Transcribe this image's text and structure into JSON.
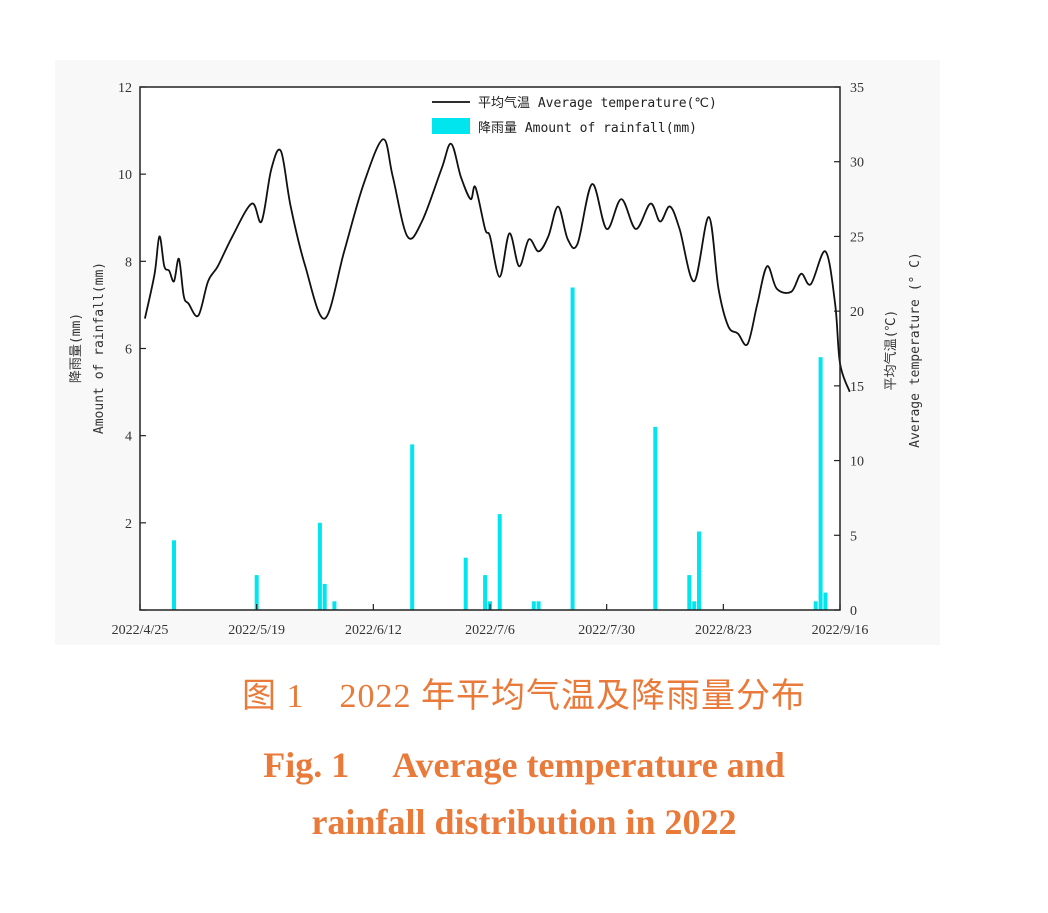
{
  "caption": {
    "zh": "图 1　2022 年平均气温及降雨量分布",
    "en_line1": "Fig. 1　 Average temperature and",
    "en_line2": "rainfall distribution in 2022"
  },
  "chart_data": {
    "type": "bar+line",
    "x_ticks": [
      "2022/4/25",
      "2022/5/19",
      "2022/6/12",
      "2022/7/6",
      "2022/7/30",
      "2022/8/23",
      "2022/9/16"
    ],
    "xlim": [
      "2022-04-25",
      "2022-09-16"
    ],
    "y_left": {
      "label_zh": "降雨量(mm)",
      "label_en": "Amount of rainfall(mm)",
      "ylim": [
        0,
        12
      ],
      "ticks": [
        "",
        "2",
        "4",
        "6",
        "8",
        "10",
        "12"
      ]
    },
    "y_right": {
      "label_zh": "平均气温(℃)",
      "label_en": "Average temperature (° C)",
      "ylim": [
        0,
        35
      ],
      "ticks": [
        "0",
        "5",
        "10",
        "15",
        "20",
        "25",
        "30",
        "35"
      ]
    },
    "legend": {
      "position": "top-right",
      "line_label": "平均气温 Average temperature(℃)",
      "bar_label": "降雨量 Amount of rainfall(mm)"
    },
    "colors": {
      "line": "#111111",
      "bar": "#00e5ee"
    },
    "rainfall_series": {
      "name": "降雨量 Amount of rainfall(mm)",
      "points": [
        {
          "date": "2022-05-02",
          "value": 1.6
        },
        {
          "date": "2022-05-19",
          "value": 0.8
        },
        {
          "date": "2022-06-01",
          "value": 2.0
        },
        {
          "date": "2022-06-02",
          "value": 0.6
        },
        {
          "date": "2022-06-04",
          "value": 0.2
        },
        {
          "date": "2022-06-20",
          "value": 3.8
        },
        {
          "date": "2022-07-01",
          "value": 1.2
        },
        {
          "date": "2022-07-05",
          "value": 0.8
        },
        {
          "date": "2022-07-06",
          "value": 0.2
        },
        {
          "date": "2022-07-08",
          "value": 2.2
        },
        {
          "date": "2022-07-15",
          "value": 0.2
        },
        {
          "date": "2022-07-16",
          "value": 0.2
        },
        {
          "date": "2022-07-23",
          "value": 7.4
        },
        {
          "date": "2022-08-09",
          "value": 4.2
        },
        {
          "date": "2022-08-16",
          "value": 0.8
        },
        {
          "date": "2022-08-17",
          "value": 0.2
        },
        {
          "date": "2022-08-18",
          "value": 1.8
        },
        {
          "date": "2022-09-11",
          "value": 0.2
        },
        {
          "date": "2022-09-12",
          "value": 5.8
        },
        {
          "date": "2022-09-13",
          "value": 0.4
        }
      ]
    },
    "temperature_series": {
      "name": "平均气温 Average temperature(℃)",
      "points": [
        {
          "date": "2022-04-26",
          "value": 19.5
        },
        {
          "date": "2022-04-28",
          "value": 22.5
        },
        {
          "date": "2022-04-29",
          "value": 25.0
        },
        {
          "date": "2022-04-30",
          "value": 23.0
        },
        {
          "date": "2022-05-01",
          "value": 22.7
        },
        {
          "date": "2022-05-02",
          "value": 22.0
        },
        {
          "date": "2022-05-03",
          "value": 23.5
        },
        {
          "date": "2022-05-04",
          "value": 21.0
        },
        {
          "date": "2022-05-05",
          "value": 20.5
        },
        {
          "date": "2022-05-07",
          "value": 19.7
        },
        {
          "date": "2022-05-09",
          "value": 22.0
        },
        {
          "date": "2022-05-11",
          "value": 23.0
        },
        {
          "date": "2022-05-14",
          "value": 25.0
        },
        {
          "date": "2022-05-18",
          "value": 27.2
        },
        {
          "date": "2022-05-20",
          "value": 26.0
        },
        {
          "date": "2022-05-22",
          "value": 29.5
        },
        {
          "date": "2022-05-24",
          "value": 30.7
        },
        {
          "date": "2022-05-26",
          "value": 27.0
        },
        {
          "date": "2022-05-29",
          "value": 23.0
        },
        {
          "date": "2022-06-02",
          "value": 19.5
        },
        {
          "date": "2022-06-06",
          "value": 24.0
        },
        {
          "date": "2022-06-10",
          "value": 28.5
        },
        {
          "date": "2022-06-14",
          "value": 31.5
        },
        {
          "date": "2022-06-16",
          "value": 29.0
        },
        {
          "date": "2022-06-19",
          "value": 25.0
        },
        {
          "date": "2022-06-22",
          "value": 26.0
        },
        {
          "date": "2022-06-26",
          "value": 29.5
        },
        {
          "date": "2022-06-28",
          "value": 31.2
        },
        {
          "date": "2022-06-30",
          "value": 29.0
        },
        {
          "date": "2022-07-02",
          "value": 27.5
        },
        {
          "date": "2022-07-03",
          "value": 28.3
        },
        {
          "date": "2022-07-05",
          "value": 25.5
        },
        {
          "date": "2022-07-06",
          "value": 25.0
        },
        {
          "date": "2022-07-08",
          "value": 22.3
        },
        {
          "date": "2022-07-10",
          "value": 25.2
        },
        {
          "date": "2022-07-12",
          "value": 23.0
        },
        {
          "date": "2022-07-14",
          "value": 24.8
        },
        {
          "date": "2022-07-16",
          "value": 24.0
        },
        {
          "date": "2022-07-18",
          "value": 25.0
        },
        {
          "date": "2022-07-20",
          "value": 27.0
        },
        {
          "date": "2022-07-22",
          "value": 24.8
        },
        {
          "date": "2022-07-24",
          "value": 24.5
        },
        {
          "date": "2022-07-27",
          "value": 28.5
        },
        {
          "date": "2022-07-30",
          "value": 25.5
        },
        {
          "date": "2022-08-02",
          "value": 27.5
        },
        {
          "date": "2022-08-05",
          "value": 25.5
        },
        {
          "date": "2022-08-08",
          "value": 27.2
        },
        {
          "date": "2022-08-10",
          "value": 26.0
        },
        {
          "date": "2022-08-12",
          "value": 27.0
        },
        {
          "date": "2022-08-14",
          "value": 25.5
        },
        {
          "date": "2022-08-17",
          "value": 22.0
        },
        {
          "date": "2022-08-20",
          "value": 26.3
        },
        {
          "date": "2022-08-22",
          "value": 21.5
        },
        {
          "date": "2022-08-24",
          "value": 19.0
        },
        {
          "date": "2022-08-26",
          "value": 18.5
        },
        {
          "date": "2022-08-28",
          "value": 17.8
        },
        {
          "date": "2022-08-30",
          "value": 20.5
        },
        {
          "date": "2022-09-01",
          "value": 23.0
        },
        {
          "date": "2022-09-03",
          "value": 21.5
        },
        {
          "date": "2022-09-06",
          "value": 21.3
        },
        {
          "date": "2022-09-08",
          "value": 22.5
        },
        {
          "date": "2022-09-10",
          "value": 21.8
        },
        {
          "date": "2022-09-13",
          "value": 24.0
        },
        {
          "date": "2022-09-15",
          "value": 20.5
        },
        {
          "date": "2022-09-16",
          "value": 16.5
        },
        {
          "date": "2022-09-18",
          "value": 14.6
        }
      ]
    },
    "grid": false
  }
}
